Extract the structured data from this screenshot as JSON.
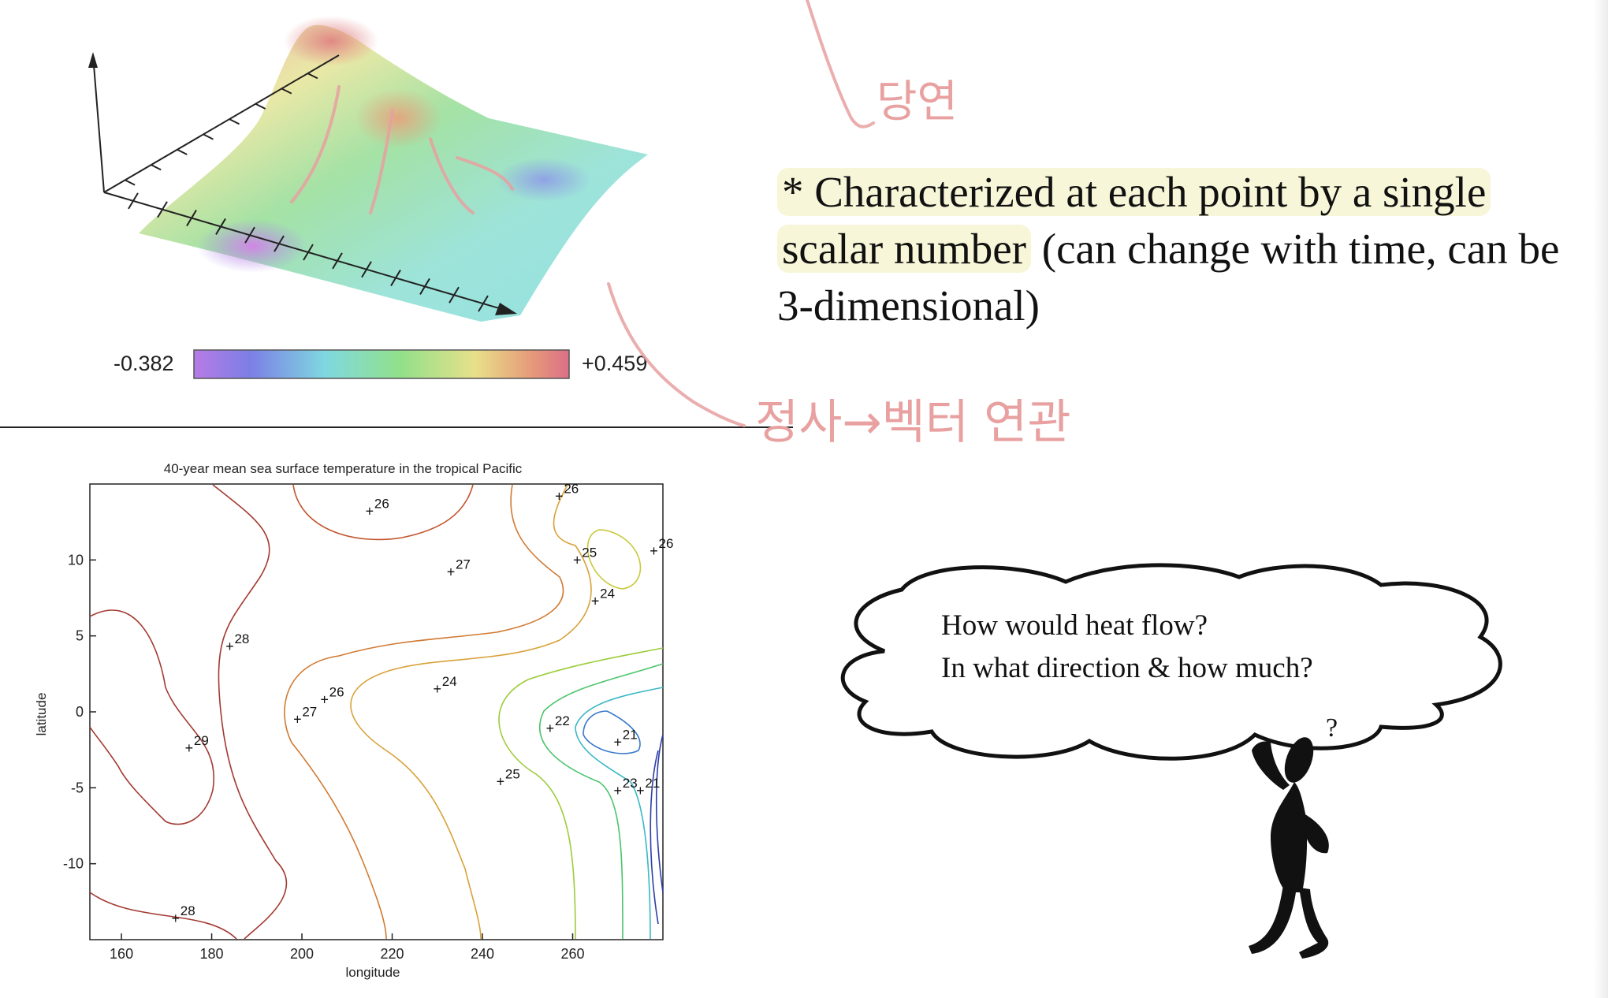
{
  "colorbar": {
    "min_label": "-0.382",
    "max_label": "+0.459"
  },
  "note": {
    "prefix": "* ",
    "highlight_1": "Characterized at each point by a single",
    "highlight_2": "scalar number",
    "rest": " (can change with time, can be 3-dimensional)"
  },
  "cloud": {
    "line1": "How would heat flow?",
    "line2": "In what direction & how much?",
    "mark": "?"
  },
  "handwriting": {
    "top": "당연",
    "middle": "정사→벡터 연관"
  },
  "chart_data": {
    "type": "contour",
    "title": "40-year mean sea surface temperature in the tropical Pacific",
    "xlabel": "longitude",
    "ylabel": "latitude",
    "xlim": [
      153,
      280
    ],
    "ylim": [
      -15,
      15
    ],
    "x_ticks": [
      160,
      180,
      200,
      220,
      240,
      260
    ],
    "y_ticks": [
      10,
      5,
      0,
      -5,
      -10
    ],
    "contour_labels": [
      {
        "text": "26",
        "x": 215,
        "y": 13.2
      },
      {
        "text": "26",
        "x": 257,
        "y": 14.2
      },
      {
        "text": "27",
        "x": 233,
        "y": 9.2
      },
      {
        "text": "25",
        "x": 261,
        "y": 10
      },
      {
        "text": "26",
        "x": 278,
        "y": 10.6
      },
      {
        "text": "24",
        "x": 265,
        "y": 7.3
      },
      {
        "text": "28",
        "x": 184,
        "y": 4.3
      },
      {
        "text": "24",
        "x": 230,
        "y": 1.5
      },
      {
        "text": "26",
        "x": 205,
        "y": 0.8
      },
      {
        "text": "27",
        "x": 199,
        "y": -0.5
      },
      {
        "text": "22",
        "x": 255,
        "y": -1.1
      },
      {
        "text": "21",
        "x": 270,
        "y": -2.0
      },
      {
        "text": "29",
        "x": 175,
        "y": -2.4
      },
      {
        "text": "25",
        "x": 244,
        "y": -4.6
      },
      {
        "text": "23",
        "x": 270,
        "y": -5.2
      },
      {
        "text": "21",
        "x": 275,
        "y": -5.2
      },
      {
        "text": "28",
        "x": 172,
        "y": -13.6
      }
    ]
  }
}
